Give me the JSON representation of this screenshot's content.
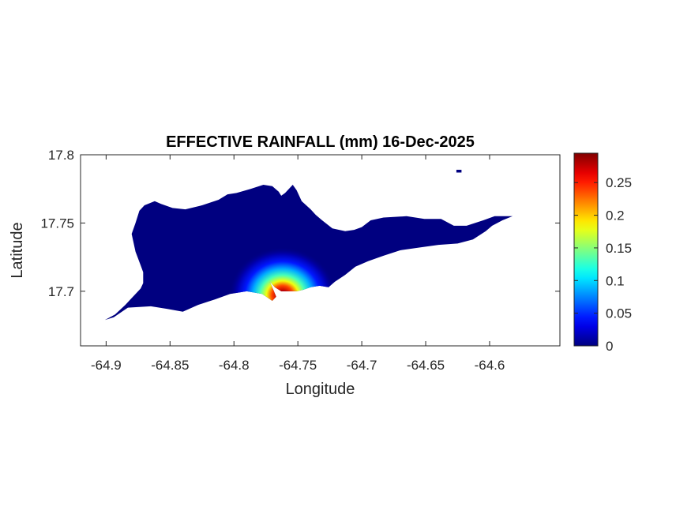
{
  "chart_data": {
    "type": "heatmap",
    "title": "EFFECTIVE RAINFALL (mm) 16-Dec-2025",
    "xlabel": "Longitude",
    "ylabel": "Latitude",
    "xlim": [
      -64.92,
      -64.545
    ],
    "ylim": [
      17.66,
      17.8
    ],
    "xticks": [
      -64.9,
      -64.85,
      -64.8,
      -64.75,
      -64.7,
      -64.65,
      -64.6
    ],
    "xtick_labels": [
      "-64.9",
      "-64.85",
      "-64.8",
      "-64.75",
      "-64.7",
      "-64.65",
      "-64.6"
    ],
    "yticks": [
      17.7,
      17.75,
      17.8
    ],
    "ytick_labels": [
      "17.7",
      "17.75",
      "17.8"
    ],
    "grid": false,
    "colormap": "jet",
    "background_value": 0,
    "peak": {
      "lon": -64.762,
      "lat": 17.697,
      "value": 0.29
    },
    "colorbar": {
      "range": [
        0,
        0.295
      ],
      "ticks": [
        0,
        0.05,
        0.1,
        0.15,
        0.2,
        0.25
      ],
      "tick_labels": [
        "0",
        "0.05",
        "0.1",
        "0.15",
        "0.2",
        "0.25"
      ]
    },
    "colors": {
      "axis": "#262626",
      "land_min": "#800000",
      "colorbar_max": "#00008f"
    },
    "island_outline": [
      [
        -64.901,
        17.679
      ],
      [
        -64.893,
        17.683
      ],
      [
        -64.885,
        17.69
      ],
      [
        -64.88,
        17.695
      ],
      [
        -64.876,
        17.699
      ],
      [
        -64.873,
        17.702
      ],
      [
        -64.871,
        17.706
      ],
      [
        -64.871,
        17.714
      ],
      [
        -64.873,
        17.719
      ],
      [
        -64.877,
        17.729
      ],
      [
        -64.88,
        17.742
      ],
      [
        -64.877,
        17.75
      ],
      [
        -64.874,
        17.759
      ],
      [
        -64.87,
        17.763
      ],
      [
        -64.862,
        17.766
      ],
      [
        -64.857,
        17.764
      ],
      [
        -64.848,
        17.761
      ],
      [
        -64.838,
        17.76
      ],
      [
        -64.825,
        17.763
      ],
      [
        -64.812,
        17.767
      ],
      [
        -64.805,
        17.771
      ],
      [
        -64.798,
        17.772
      ],
      [
        -64.787,
        17.775
      ],
      [
        -64.777,
        17.778
      ],
      [
        -64.77,
        17.777
      ],
      [
        -64.765,
        17.773
      ],
      [
        -64.763,
        17.77
      ],
      [
        -64.76,
        17.772
      ],
      [
        -64.757,
        17.775
      ],
      [
        -64.754,
        17.778
      ],
      [
        -64.751,
        17.774
      ],
      [
        -64.747,
        17.766
      ],
      [
        -64.74,
        17.76
      ],
      [
        -64.736,
        17.756
      ],
      [
        -64.731,
        17.752
      ],
      [
        -64.723,
        17.746
      ],
      [
        -64.713,
        17.744
      ],
      [
        -64.706,
        17.745
      ],
      [
        -64.7,
        17.747
      ],
      [
        -64.693,
        17.752
      ],
      [
        -64.683,
        17.754
      ],
      [
        -64.665,
        17.755
      ],
      [
        -64.651,
        17.753
      ],
      [
        -64.638,
        17.753
      ],
      [
        -64.628,
        17.748
      ],
      [
        -64.618,
        17.748
      ],
      [
        -64.605,
        17.752
      ],
      [
        -64.596,
        17.755
      ],
      [
        -64.582,
        17.755
      ],
      [
        -64.59,
        17.752
      ],
      [
        -64.598,
        17.748
      ],
      [
        -64.603,
        17.744
      ],
      [
        -64.608,
        17.741
      ],
      [
        -64.613,
        17.738
      ],
      [
        -64.625,
        17.735
      ],
      [
        -64.64,
        17.734
      ],
      [
        -64.655,
        17.732
      ],
      [
        -64.67,
        17.73
      ],
      [
        -64.683,
        17.726
      ],
      [
        -64.695,
        17.722
      ],
      [
        -64.705,
        17.718
      ],
      [
        -64.713,
        17.712
      ],
      [
        -64.721,
        17.707
      ],
      [
        -64.726,
        17.703
      ],
      [
        -64.733,
        17.704
      ],
      [
        -64.74,
        17.703
      ],
      [
        -64.746,
        17.701
      ],
      [
        -64.751,
        17.7
      ],
      [
        -64.757,
        17.7
      ],
      [
        -64.763,
        17.7
      ],
      [
        -64.768,
        17.703
      ],
      [
        -64.772,
        17.707
      ],
      [
        -64.77,
        17.703
      ],
      [
        -64.767,
        17.696
      ],
      [
        -64.77,
        17.693
      ],
      [
        -64.778,
        17.698
      ],
      [
        -64.79,
        17.7
      ],
      [
        -64.803,
        17.698
      ],
      [
        -64.815,
        17.694
      ],
      [
        -64.828,
        17.69
      ],
      [
        -64.84,
        17.685
      ],
      [
        -64.852,
        17.687
      ],
      [
        -64.865,
        17.689
      ],
      [
        -64.883,
        17.688
      ],
      [
        -64.894,
        17.681
      ]
    ],
    "islet_outline": [
      [
        -64.626,
        17.787
      ],
      [
        -64.622,
        17.787
      ],
      [
        -64.622,
        17.789
      ],
      [
        -64.626,
        17.789
      ]
    ]
  }
}
